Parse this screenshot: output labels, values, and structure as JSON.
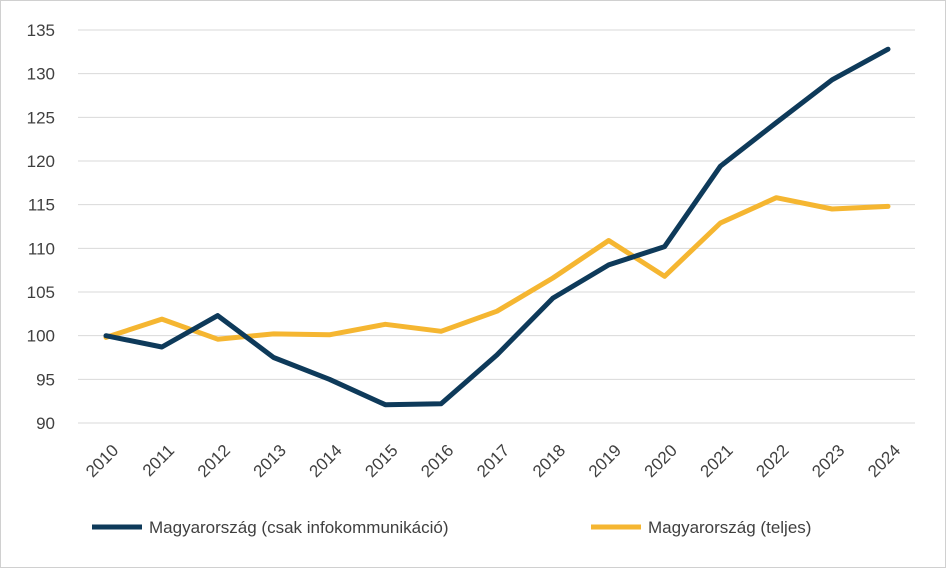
{
  "chart_data": {
    "type": "line",
    "title": "",
    "xlabel": "",
    "ylabel": "",
    "categories": [
      "2010",
      "2011",
      "2012",
      "2013",
      "2014",
      "2015",
      "2016",
      "2017",
      "2018",
      "2019",
      "2020",
      "2021",
      "2022",
      "2023",
      "2024"
    ],
    "yticks": [
      "90",
      "95",
      "100",
      "105",
      "110",
      "115",
      "120",
      "125",
      "130",
      "135"
    ],
    "ylim": [
      90,
      135
    ],
    "grid": true,
    "legend_position": "bottom",
    "series": [
      {
        "name": "Magyarország (csak infokommunikáció)",
        "color": "#0e3a5a",
        "values": [
          100,
          98.7,
          102.3,
          97.5,
          95.0,
          92.1,
          92.2,
          97.8,
          104.3,
          108.1,
          110.2,
          119.4,
          124.4,
          129.3,
          132.8
        ]
      },
      {
        "name": "Magyarország (teljes)",
        "color": "#f5b631",
        "values": [
          99.8,
          101.9,
          99.6,
          100.2,
          100.1,
          101.3,
          100.5,
          102.8,
          106.6,
          110.9,
          106.8,
          112.9,
          115.8,
          114.5,
          114.8
        ]
      }
    ]
  }
}
